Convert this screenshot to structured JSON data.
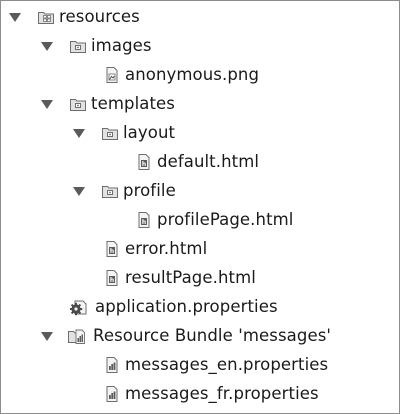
{
  "tree": {
    "resources": "resources",
    "images": "images",
    "anonymous_png": "anonymous.png",
    "templates": "templates",
    "layout": "layout",
    "default_html": "default.html",
    "profile": "profile",
    "profilePage_html": "profilePage.html",
    "error_html": "error.html",
    "resultPage_html": "resultPage.html",
    "application_properties": "application.properties",
    "resource_bundle": "Resource Bundle 'messages'",
    "messages_en": "messages_en.properties",
    "messages_fr": "messages_fr.properties"
  },
  "icons": {
    "expand": "expand-arrow-icon",
    "resource_root": "resource-root-folder-icon",
    "folder": "folder-icon",
    "image_file": "image-file-icon",
    "html_file": "html-file-icon",
    "properties_file": "properties-file-icon",
    "resource_bundle": "resource-bundle-icon"
  },
  "colors": {
    "arrow": "#5a5a5a",
    "folder_fill": "#d8d8d8",
    "folder_stroke": "#6e6e6e",
    "text": "#1a1a1a"
  }
}
